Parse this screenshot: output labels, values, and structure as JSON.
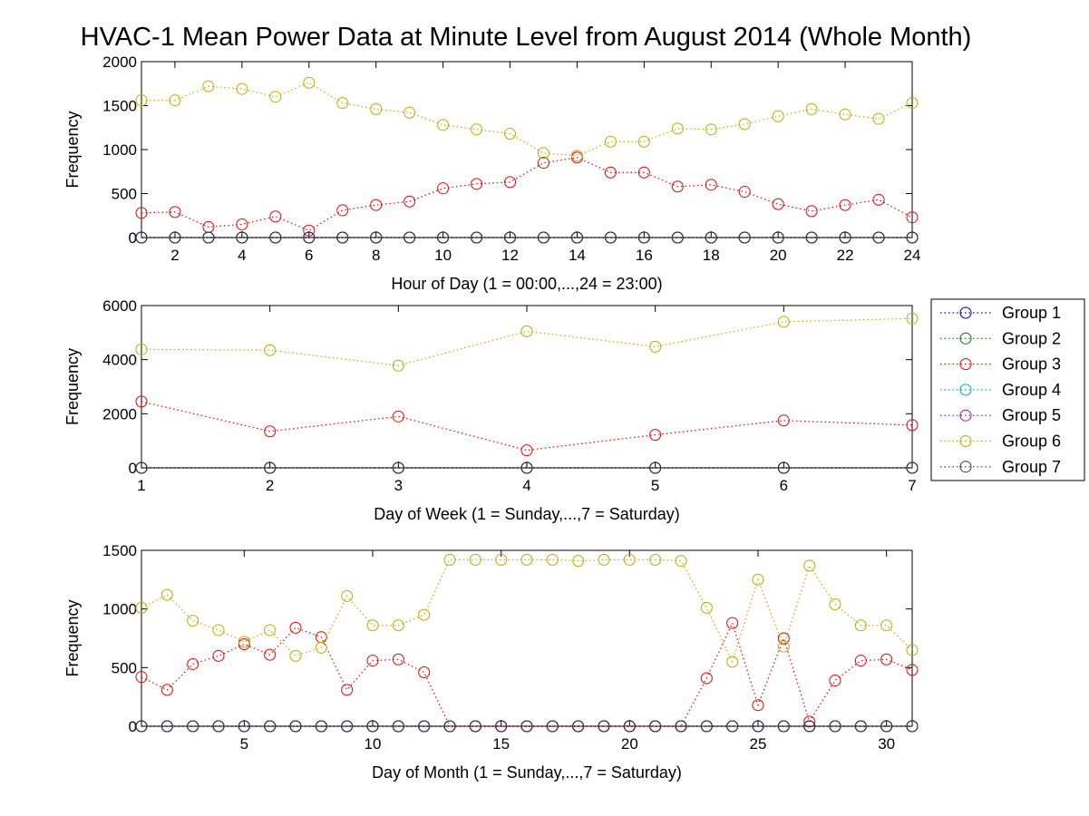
{
  "title": "HVAC-1 Mean Power Data at Minute Level from August 2014 (Whole Month)",
  "colors": {
    "Group 1": "#0000aa",
    "Group 2": "#007700",
    "Group 3": "#ee0000",
    "Group 4": "#00aacc",
    "Group 5": "#9900cc",
    "Group 6": "#bbaa00",
    "Group 7": "#333333"
  },
  "legend": {
    "placement": "right",
    "entries": [
      "Group 1",
      "Group 2",
      "Group 3",
      "Group 4",
      "Group 5",
      "Group 6",
      "Group 7"
    ]
  },
  "chart_data": [
    {
      "type": "line",
      "marker": "circle",
      "line_style": "dotted",
      "xlabel": "Hour of Day (1 = 00:00,...,24 = 23:00)",
      "ylabel": "Frequency",
      "xlim": [
        1,
        24
      ],
      "ylim": [
        0,
        2000
      ],
      "xticks": [
        2,
        4,
        6,
        8,
        10,
        12,
        14,
        16,
        18,
        20,
        22,
        24
      ],
      "yticks": [
        0,
        500,
        1000,
        1500,
        2000
      ],
      "x": [
        1,
        2,
        3,
        4,
        5,
        6,
        7,
        8,
        9,
        10,
        11,
        12,
        13,
        14,
        15,
        16,
        17,
        18,
        19,
        20,
        21,
        22,
        23,
        24
      ],
      "series": [
        {
          "name": "Group 1",
          "values": [
            0,
            0,
            0,
            0,
            0,
            0,
            0,
            0,
            0,
            0,
            0,
            0,
            0,
            0,
            0,
            0,
            0,
            0,
            0,
            0,
            0,
            0,
            0,
            0
          ]
        },
        {
          "name": "Group 2",
          "values": [
            0,
            0,
            0,
            0,
            0,
            0,
            0,
            0,
            0,
            0,
            0,
            0,
            0,
            0,
            0,
            0,
            0,
            0,
            0,
            0,
            0,
            0,
            0,
            0
          ]
        },
        {
          "name": "Group 3",
          "values": [
            280,
            290,
            120,
            150,
            240,
            80,
            310,
            370,
            410,
            560,
            610,
            630,
            850,
            910,
            740,
            740,
            580,
            600,
            520,
            380,
            300,
            370,
            430,
            230
          ]
        },
        {
          "name": "Group 4",
          "values": [
            0,
            0,
            0,
            0,
            0,
            0,
            0,
            0,
            0,
            0,
            0,
            0,
            0,
            0,
            0,
            0,
            0,
            0,
            0,
            0,
            0,
            0,
            0,
            0
          ]
        },
        {
          "name": "Group 5",
          "values": [
            0,
            0,
            0,
            0,
            0,
            0,
            0,
            0,
            0,
            0,
            0,
            0,
            0,
            0,
            0,
            0,
            0,
            0,
            0,
            0,
            0,
            0,
            0,
            0
          ]
        },
        {
          "name": "Group 6",
          "values": [
            1560,
            1560,
            1720,
            1690,
            1600,
            1760,
            1530,
            1460,
            1420,
            1280,
            1230,
            1180,
            960,
            930,
            1090,
            1090,
            1240,
            1230,
            1290,
            1380,
            1460,
            1400,
            1350,
            1530
          ]
        },
        {
          "name": "Group 7",
          "values": [
            0,
            0,
            0,
            0,
            0,
            0,
            0,
            0,
            0,
            0,
            0,
            0,
            0,
            0,
            0,
            0,
            0,
            0,
            0,
            0,
            0,
            0,
            0,
            0
          ]
        }
      ]
    },
    {
      "type": "line",
      "marker": "circle",
      "line_style": "dotted",
      "xlabel": "Day of Week (1 = Sunday,...,7 = Saturday)",
      "ylabel": "Frequency",
      "xlim": [
        1,
        7
      ],
      "ylim": [
        0,
        6000
      ],
      "xticks": [
        1,
        2,
        3,
        4,
        5,
        6,
        7
      ],
      "yticks": [
        0,
        2000,
        4000,
        6000
      ],
      "x": [
        1,
        2,
        3,
        4,
        5,
        6,
        7
      ],
      "series": [
        {
          "name": "Group 1",
          "values": [
            0,
            0,
            0,
            0,
            0,
            0,
            0
          ]
        },
        {
          "name": "Group 2",
          "values": [
            0,
            0,
            0,
            0,
            0,
            0,
            0
          ]
        },
        {
          "name": "Group 3",
          "values": [
            2450,
            1350,
            1900,
            650,
            1220,
            1750,
            1580
          ]
        },
        {
          "name": "Group 4",
          "values": [
            0,
            0,
            0,
            0,
            0,
            0,
            0
          ]
        },
        {
          "name": "Group 5",
          "values": [
            0,
            0,
            0,
            0,
            0,
            0,
            0
          ]
        },
        {
          "name": "Group 6",
          "values": [
            4380,
            4350,
            3780,
            5050,
            4480,
            5400,
            5520
          ]
        },
        {
          "name": "Group 7",
          "values": [
            0,
            0,
            0,
            0,
            0,
            0,
            0
          ]
        }
      ]
    },
    {
      "type": "line",
      "marker": "circle",
      "line_style": "dotted",
      "xlabel": "Day of Month (1 = Sunday,...,7 = Saturday)",
      "ylabel": "Frequency",
      "xlim": [
        1,
        31
      ],
      "ylim": [
        0,
        1500
      ],
      "xticks": [
        5,
        10,
        15,
        20,
        25,
        30
      ],
      "yticks": [
        0,
        500,
        1000,
        1500
      ],
      "x": [
        1,
        2,
        3,
        4,
        5,
        6,
        7,
        8,
        9,
        10,
        11,
        12,
        13,
        14,
        15,
        16,
        17,
        18,
        19,
        20,
        21,
        22,
        23,
        24,
        25,
        26,
        27,
        28,
        29,
        30,
        31
      ],
      "series": [
        {
          "name": "Group 1",
          "values": [
            0,
            0,
            0,
            0,
            0,
            0,
            0,
            0,
            0,
            0,
            0,
            0,
            0,
            0,
            0,
            0,
            0,
            0,
            0,
            0,
            0,
            0,
            0,
            0,
            0,
            0,
            0,
            0,
            0,
            0,
            0
          ]
        },
        {
          "name": "Group 2",
          "values": [
            0,
            0,
            0,
            0,
            0,
            0,
            0,
            0,
            0,
            0,
            0,
            0,
            0,
            0,
            0,
            0,
            0,
            0,
            0,
            0,
            0,
            0,
            0,
            0,
            0,
            0,
            0,
            0,
            0,
            0,
            0
          ]
        },
        {
          "name": "Group 3",
          "values": [
            420,
            310,
            530,
            600,
            700,
            610,
            840,
            760,
            310,
            560,
            570,
            460,
            0,
            0,
            0,
            0,
            0,
            0,
            0,
            0,
            0,
            0,
            410,
            880,
            180,
            750,
            40,
            390,
            560,
            570,
            480
          ]
        },
        {
          "name": "Group 4",
          "values": [
            0,
            0,
            0,
            0,
            0,
            0,
            0,
            0,
            0,
            0,
            0,
            0,
            0,
            0,
            0,
            0,
            0,
            0,
            0,
            0,
            0,
            0,
            0,
            0,
            0,
            0,
            0,
            0,
            0,
            0,
            0
          ]
        },
        {
          "name": "Group 5",
          "values": [
            0,
            0,
            0,
            0,
            0,
            0,
            0,
            0,
            0,
            0,
            0,
            0,
            0,
            0,
            0,
            0,
            0,
            0,
            0,
            0,
            0,
            0,
            0,
            0,
            0,
            0,
            0,
            0,
            0,
            0,
            0
          ]
        },
        {
          "name": "Group 6",
          "values": [
            1010,
            1120,
            900,
            820,
            720,
            820,
            600,
            670,
            1110,
            860,
            860,
            950,
            1420,
            1420,
            1420,
            1420,
            1420,
            1410,
            1420,
            1420,
            1420,
            1410,
            1010,
            550,
            1250,
            680,
            1370,
            1040,
            860,
            860,
            650
          ]
        },
        {
          "name": "Group 7",
          "values": [
            0,
            0,
            0,
            0,
            0,
            0,
            0,
            0,
            0,
            0,
            0,
            0,
            0,
            0,
            0,
            0,
            0,
            0,
            0,
            0,
            0,
            0,
            0,
            0,
            0,
            0,
            0,
            0,
            0,
            0,
            0
          ]
        }
      ]
    }
  ]
}
